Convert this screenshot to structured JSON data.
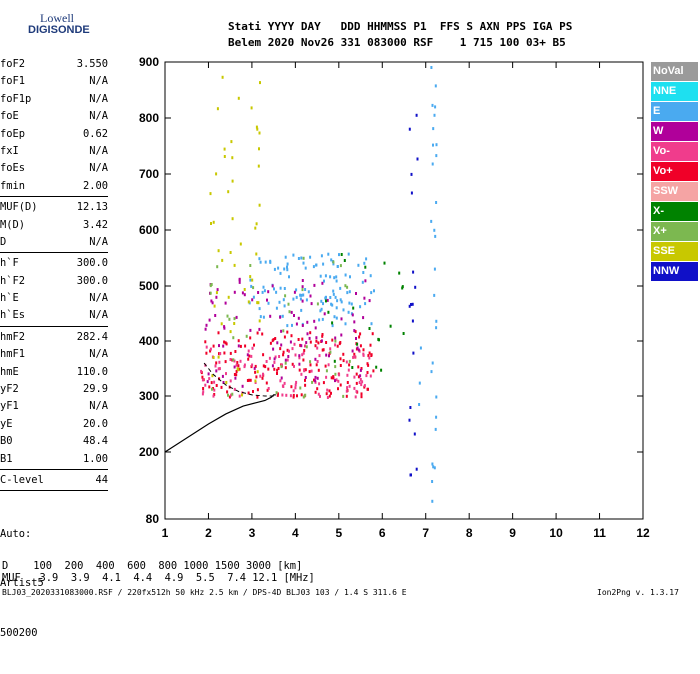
{
  "logo": {
    "line1": "Lowell",
    "line2": "DIGISONDE"
  },
  "header": {
    "line1": "Stati YYYY DAY   DDD HHMMSS P1  FFS S AXN PPS IGA PS",
    "line2": "Belem 2020 Nov26 331 083000 RSF    1 715 100 03+ B5"
  },
  "params_block1": [
    {
      "k": "foF2",
      "v": "3.550"
    },
    {
      "k": "foF1",
      "v": "N/A"
    },
    {
      "k": "foF1p",
      "v": "N/A"
    },
    {
      "k": "foE",
      "v": "N/A"
    },
    {
      "k": "foEp",
      "v": "0.62"
    },
    {
      "k": "fxI",
      "v": "N/A"
    },
    {
      "k": "foEs",
      "v": "N/A"
    },
    {
      "k": "fmin",
      "v": "2.00"
    }
  ],
  "params_block2": [
    {
      "k": "MUF(D)",
      "v": "12.13"
    },
    {
      "k": "M(D)",
      "v": "3.42"
    },
    {
      "k": "D",
      "v": "N/A"
    }
  ],
  "params_block3": [
    {
      "k": "h`F",
      "v": "300.0"
    },
    {
      "k": "h`F2",
      "v": "300.0"
    },
    {
      "k": "h`E",
      "v": "N/A"
    },
    {
      "k": "h`Es",
      "v": "N/A"
    }
  ],
  "params_block4": [
    {
      "k": "hmF2",
      "v": "282.4"
    },
    {
      "k": "hmF1",
      "v": "N/A"
    },
    {
      "k": "hmE",
      "v": "110.0"
    },
    {
      "k": "yF2",
      "v": "29.9"
    },
    {
      "k": "yF1",
      "v": "N/A"
    },
    {
      "k": "yE",
      "v": "20.0"
    },
    {
      "k": "B0",
      "v": "48.4"
    },
    {
      "k": "B1",
      "v": "1.00"
    }
  ],
  "clevel": {
    "k": "C-level",
    "v": "44"
  },
  "auto": {
    "l1": "Auto:",
    "l2": "Artist5",
    "l3": "500200"
  },
  "legend": [
    {
      "label": "NoVal",
      "color": "#9a9a9a"
    },
    {
      "label": "NNE",
      "color": "#1ee0f0"
    },
    {
      "label": "E",
      "color": "#4aaaf0"
    },
    {
      "label": "W",
      "color": "#b0009a"
    },
    {
      "label": "Vo-",
      "color": "#f03c8c"
    },
    {
      "label": "Vo+",
      "color": "#f00028"
    },
    {
      "label": "SSW",
      "color": "#f5a4a4"
    },
    {
      "label": "X-",
      "color": "#008200"
    },
    {
      "label": "X+",
      "color": "#7cb850"
    },
    {
      "label": "SSE",
      "color": "#c8c800"
    },
    {
      "label": "NNW",
      "color": "#1010c8"
    }
  ],
  "footer": {
    "d_line": "D    100  200  400  600  800 1000 1500 3000 [km]",
    "muf_line": "MUF   3.9  3.9  4.1  4.4  4.9  5.5  7.4 12.1 [MHz]",
    "file_line": "BLJ03_2020331083000.RSF / 220fx512h 50 kHz 2.5 km / DPS-4D BLJ03 103 / 1.4 S 311.6 E",
    "version": "Ion2Png v. 1.3.17"
  },
  "chart_data": {
    "type": "scatter",
    "title": "",
    "xlabel": "",
    "ylabel": "",
    "x_ticks": [
      "1",
      "2",
      "3",
      "4",
      "5",
      "6",
      "7",
      "8",
      "9",
      "10",
      "11",
      "12"
    ],
    "y_ticks": [
      "80",
      "200",
      "300",
      "400",
      "500",
      "600",
      "700",
      "800",
      "900"
    ],
    "xlim": [
      1,
      12
    ],
    "ylim": [
      80,
      900
    ],
    "series": [
      {
        "name": "E",
        "color": "#4aaaf0",
        "clusters": [
          {
            "x": [
              2.9,
              5.8
            ],
            "y": [
              430,
              560
            ],
            "density": 0.35
          },
          {
            "x": [
              7.1,
              7.25
            ],
            "y": [
              80,
              900
            ],
            "density": 0.25
          },
          {
            "x": [
              6.8,
              6.9
            ],
            "y": [
              260,
              400
            ],
            "density": 0.25
          }
        ]
      },
      {
        "name": "Vo+",
        "color": "#f00028",
        "clusters": [
          {
            "x": [
              1.8,
              5.8
            ],
            "y": [
              300,
              420
            ],
            "density": 0.4
          }
        ]
      },
      {
        "name": "Vo-",
        "color": "#f03c8c",
        "clusters": [
          {
            "x": [
              1.8,
              5.8
            ],
            "y": [
              300,
              400
            ],
            "density": 0.3
          }
        ]
      },
      {
        "name": "W",
        "color": "#b0009a",
        "clusters": [
          {
            "x": [
              1.9,
              5.7
            ],
            "y": [
              320,
              520
            ],
            "density": 0.15
          }
        ]
      },
      {
        "name": "SSE",
        "color": "#c8c800",
        "clusters": [
          {
            "x": [
              2.0,
              3.2
            ],
            "y": [
              300,
              900
            ],
            "density": 0.08
          }
        ]
      },
      {
        "name": "X+",
        "color": "#7cb850",
        "clusters": [
          {
            "x": [
              1.9,
              5.5
            ],
            "y": [
              300,
              560
            ],
            "density": 0.05
          }
        ]
      },
      {
        "name": "NNW",
        "color": "#1010c8",
        "clusters": [
          {
            "x": [
              6.6,
              6.8
            ],
            "y": [
              140,
              820
            ],
            "density": 0.15
          }
        ]
      },
      {
        "name": "X-",
        "color": "#008200",
        "clusters": [
          {
            "x": [
              4.5,
              6.5
            ],
            "y": [
              330,
              560
            ],
            "density": 0.05
          }
        ]
      }
    ],
    "profile_curve": {
      "x": [
        1.0,
        1.5,
        2.0,
        2.4,
        2.8,
        3.1,
        3.3,
        3.45,
        3.5,
        3.55
      ],
      "y": [
        200,
        225,
        250,
        268,
        282,
        288,
        292,
        298,
        302,
        302
      ]
    },
    "fitted_trace": {
      "x": [
        1.9,
        2.1,
        2.4,
        2.7,
        3.0,
        3.3,
        3.5,
        3.55
      ],
      "y": [
        360,
        340,
        320,
        308,
        302,
        300,
        300,
        302
      ]
    }
  }
}
